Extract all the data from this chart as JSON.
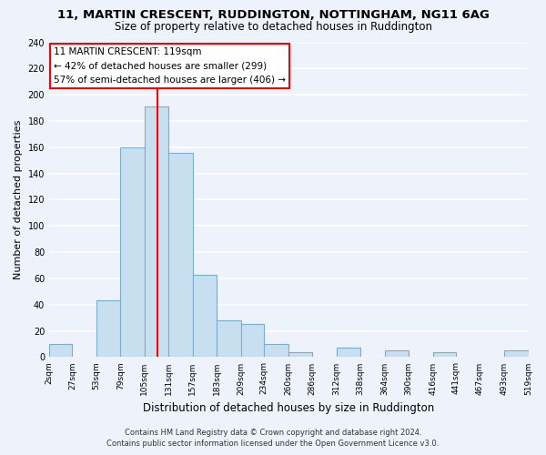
{
  "title": "11, MARTIN CRESCENT, RUDDINGTON, NOTTINGHAM, NG11 6AG",
  "subtitle": "Size of property relative to detached houses in Ruddington",
  "xlabel": "Distribution of detached houses by size in Ruddington",
  "ylabel": "Number of detached properties",
  "bar_color": "#c8dff0",
  "bar_edge_color": "#7aaecc",
  "bin_edges": [
    2,
    27,
    53,
    79,
    105,
    131,
    157,
    183,
    209,
    234,
    260,
    286,
    312,
    338,
    364,
    390,
    416,
    441,
    467,
    493,
    519
  ],
  "bar_heights": [
    10,
    0,
    43,
    160,
    191,
    156,
    63,
    28,
    25,
    10,
    4,
    0,
    7,
    0,
    5,
    0,
    4,
    0,
    0,
    5
  ],
  "tick_labels": [
    "2sqm",
    "27sqm",
    "53sqm",
    "79sqm",
    "105sqm",
    "131sqm",
    "157sqm",
    "183sqm",
    "209sqm",
    "234sqm",
    "260sqm",
    "286sqm",
    "312sqm",
    "338sqm",
    "364sqm",
    "390sqm",
    "416sqm",
    "441sqm",
    "467sqm",
    "493sqm",
    "519sqm"
  ],
  "vline_x": 119,
  "vline_color": "red",
  "annotation_title": "11 MARTIN CRESCENT: 119sqm",
  "annotation_line1": "← 42% of detached houses are smaller (299)",
  "annotation_line2": "57% of semi-detached houses are larger (406) →",
  "ylim": [
    0,
    240
  ],
  "yticks": [
    0,
    20,
    40,
    60,
    80,
    100,
    120,
    140,
    160,
    180,
    200,
    220,
    240
  ],
  "footer_line1": "Contains HM Land Registry data © Crown copyright and database right 2024.",
  "footer_line2": "Contains public sector information licensed under the Open Government Licence v3.0.",
  "bg_color": "#eef2fa",
  "grid_color": "#ffffff"
}
